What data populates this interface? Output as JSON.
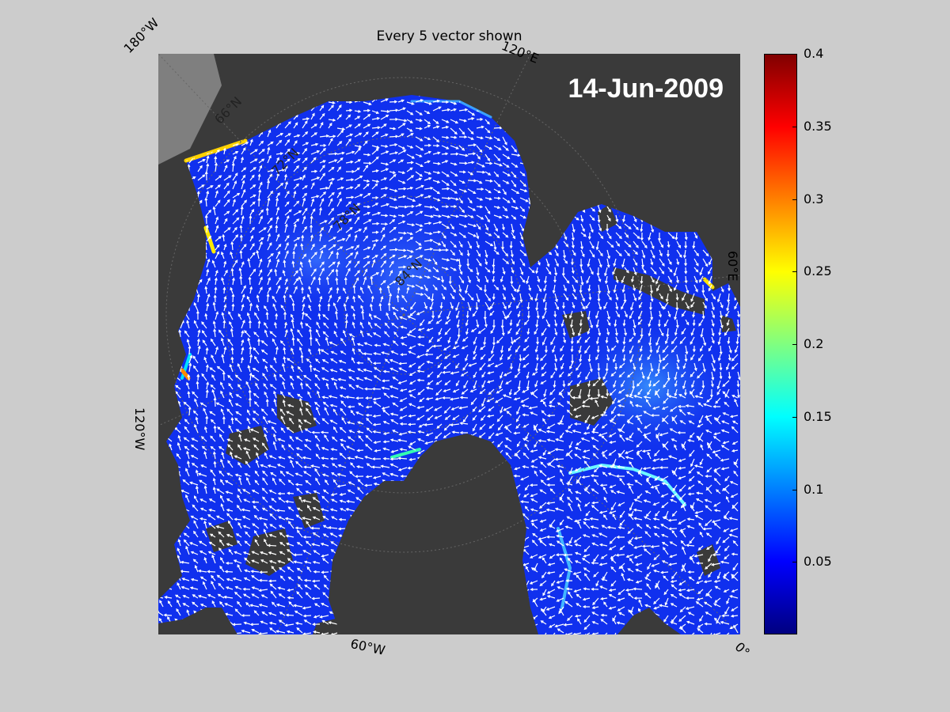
{
  "title": "Every 5 vector shown",
  "date_label": "14-Jun-2009",
  "lon_labels": [
    "180°W",
    "120°E",
    "60°E",
    "0°",
    "60°W",
    "120°W"
  ],
  "lat_labels": [
    "66°N",
    "72°N",
    "78°N",
    "84°N"
  ],
  "colorbar": {
    "min": 0,
    "max": 0.4,
    "tick_labels": [
      "0.4",
      "0.35",
      "0.3",
      "0.25",
      "0.2",
      "0.15",
      "0.1",
      "0.05"
    ],
    "tick_values": [
      0.4,
      0.35,
      0.3,
      0.25,
      0.2,
      0.15,
      0.1,
      0.05
    ],
    "colormap": "jet"
  },
  "colors": {
    "background": "#cccccc",
    "land": "#3a3a3a",
    "outside_domain": "#7f7f7f",
    "ocean_base": "#1030ee",
    "vectors": "#ffffff"
  }
}
